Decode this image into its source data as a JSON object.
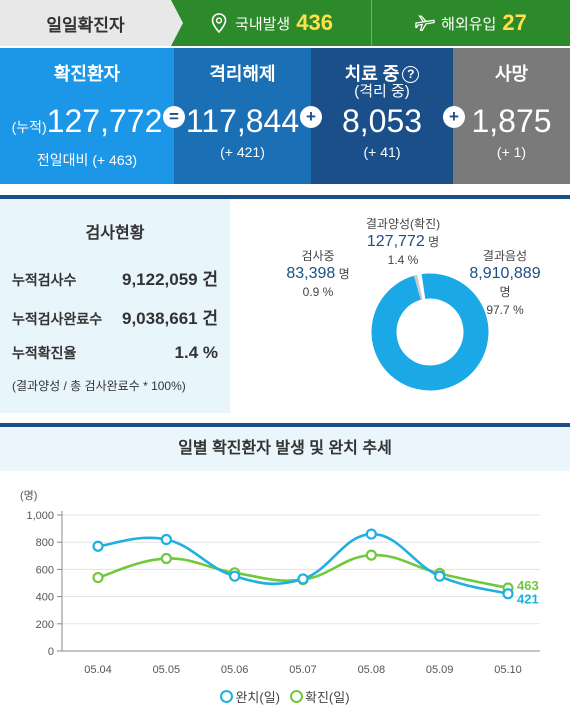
{
  "topbar": {
    "title": "일일확진자",
    "domestic_label": "국내발생",
    "domestic_value": "436",
    "overseas_label": "해외유입",
    "overseas_value": "27",
    "domestic_icon": "map-pin-icon",
    "overseas_icon": "airplane-icon"
  },
  "stats": {
    "confirmed": {
      "title": "확진환자",
      "prefix": "(누적)",
      "value": "127,772",
      "note": "전일대비 (+ 463)"
    },
    "released": {
      "title": "격리해제",
      "value": "117,844",
      "note": "(+ 421)"
    },
    "treatment": {
      "title": "치료 중",
      "subtitle": "(격리 중)",
      "value": "8,053",
      "note": "(+ 41)"
    },
    "deaths": {
      "title": "사망",
      "value": "1,875",
      "note": "(+ 1)"
    },
    "op_equals": "=",
    "op_plus": "+",
    "help": "?"
  },
  "tests": {
    "title": "검사현황",
    "rows": [
      {
        "label": "누적검사수",
        "value": "9,122,059 건"
      },
      {
        "label": "누적검사완료수",
        "value": "9,038,661 건"
      },
      {
        "label": "누적확진율",
        "value": "1.4 %"
      }
    ],
    "note": "(결과양성 / 총 검사완료수 * 100%)",
    "donut": {
      "in_progress": {
        "label": "검사중",
        "value": "83,398",
        "unit": "명",
        "pct": "0.9 %",
        "share": 0.9
      },
      "positive": {
        "label": "결과양성(확진)",
        "value": "127,772",
        "unit": "명",
        "pct": "1.4 %",
        "share": 1.4
      },
      "negative": {
        "label": "결과음성",
        "value": "8,910,889",
        "unit": "명",
        "pct": "97.7 %",
        "share": 97.7
      }
    }
  },
  "colors": {
    "cured": "#1fb0e0",
    "confirmed": "#6fc93b",
    "donut_main": "#1aa8e6",
    "donut_positive": "#ffffff",
    "donut_progress": "#c9c9c9"
  },
  "chart_data": {
    "type": "line",
    "title": "일별 확진환자 발생 및 완치 추세",
    "ylabel": "(명)",
    "xlabel": "",
    "categories": [
      "05.04",
      "05.05",
      "05.06",
      "05.07",
      "05.08",
      "05.09",
      "05.10"
    ],
    "yticks": [
      "0",
      "200",
      "400",
      "600",
      "800",
      "1,000"
    ],
    "ylim": [
      0,
      1000
    ],
    "series": [
      {
        "name": "완치(일)",
        "values": [
          770,
          820,
          550,
          530,
          860,
          550,
          421
        ],
        "last_label": "421"
      },
      {
        "name": "확진(일)",
        "values": [
          540,
          680,
          575,
          525,
          705,
          570,
          463
        ],
        "last_label": "463"
      }
    ],
    "grid": true,
    "legend": "bottom"
  }
}
